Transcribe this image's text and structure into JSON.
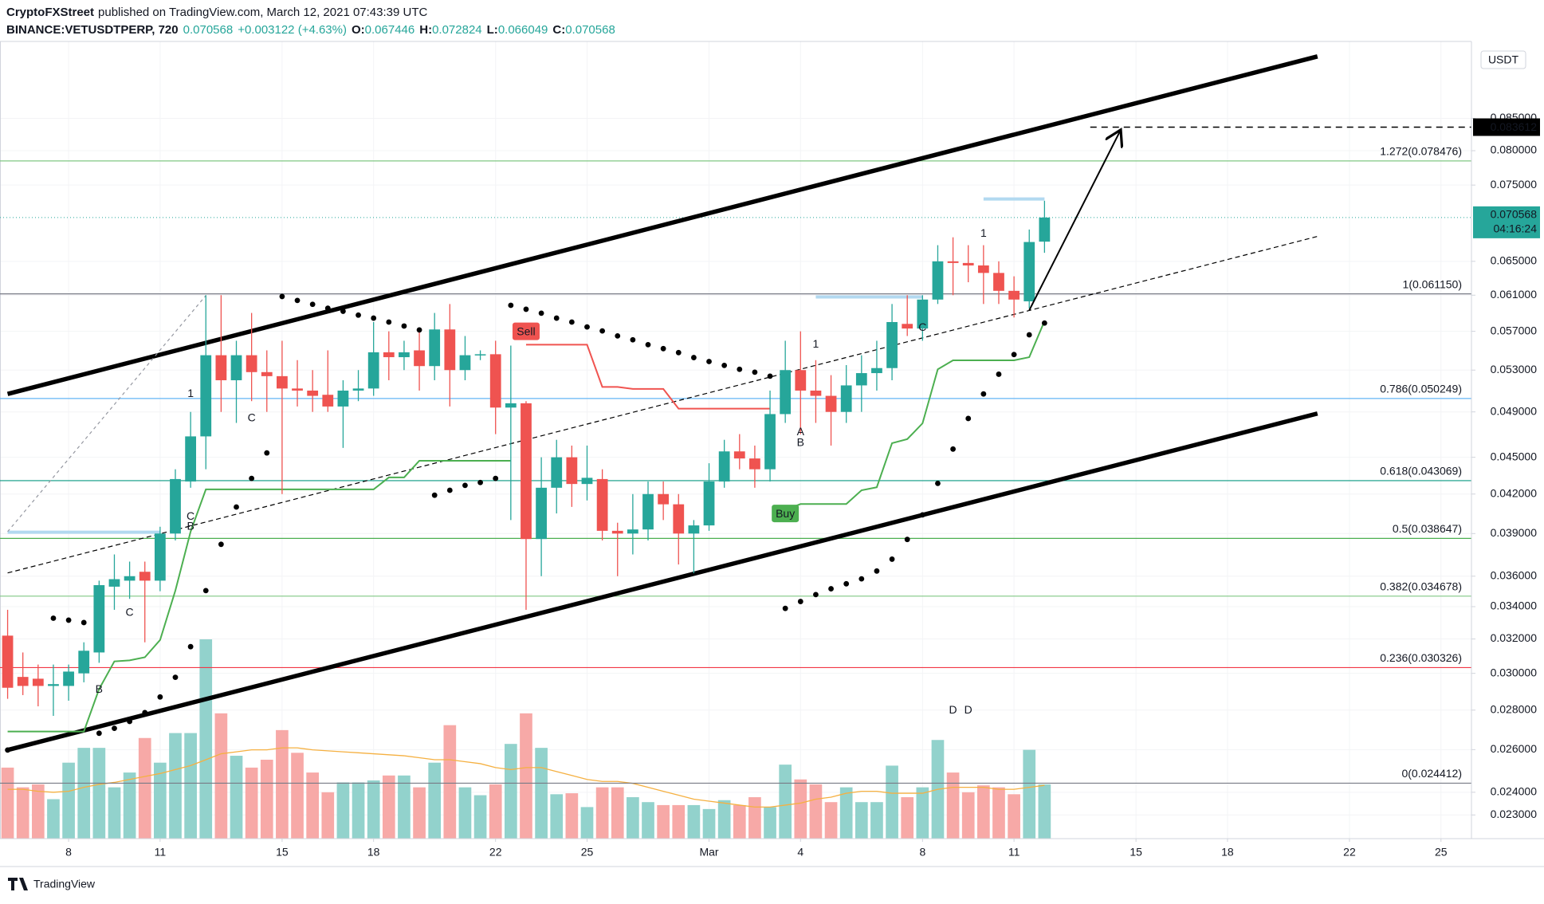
{
  "chart_data": {
    "type": "candlestick",
    "publisher": "CryptoFXStreet",
    "title": "published on TradingView.com, March 12, 2021 07:43:39 UTC",
    "symbol": "BINANCE:VETUSDTPERP, 720",
    "change": "+0.003122 (+4.63%)",
    "ohlc_labels": [
      "O:",
      "H:",
      "L:",
      "C:"
    ],
    "currency": "USDT",
    "countdown": "04:16:24",
    "brand": "TradingView",
    "log_scale": true,
    "grid": true,
    "up_color": "#26a69a",
    "down_color": "#ef5350",
    "volume_up_color": "#92d2cc",
    "volume_down_color": "#f7a9a7",
    "volume_ma_color": "#f5b041",
    "xlim": [
      -0.5,
      96
    ],
    "xticks": [
      {
        "value": 4,
        "label": "8"
      },
      {
        "value": 10,
        "label": "11"
      },
      {
        "value": 18,
        "label": "15"
      },
      {
        "value": 24,
        "label": "18"
      },
      {
        "value": 32,
        "label": "22"
      },
      {
        "value": 38,
        "label": "25"
      },
      {
        "value": 46,
        "label": "Mar"
      },
      {
        "value": 52,
        "label": "4"
      },
      {
        "value": 60,
        "label": "8"
      },
      {
        "value": 66,
        "label": "11"
      },
      {
        "value": 74,
        "label": "15"
      },
      {
        "value": 80,
        "label": "18"
      },
      {
        "value": 88,
        "label": "22"
      },
      {
        "value": 94,
        "label": "25"
      }
    ],
    "ylim": [
      0.022,
      0.0982
    ],
    "yticks": [
      {
        "value": 0.085,
        "label": "0.085000"
      },
      {
        "value": 0.08,
        "label": "0.080000"
      },
      {
        "value": 0.075,
        "label": "0.075000"
      },
      {
        "value": 0.065,
        "label": "0.065000"
      },
      {
        "value": 0.061,
        "label": "0.061000"
      },
      {
        "value": 0.057,
        "label": "0.057000"
      },
      {
        "value": 0.053,
        "label": "0.053000"
      },
      {
        "value": 0.049,
        "label": "0.049000"
      },
      {
        "value": 0.045,
        "label": "0.045000"
      },
      {
        "value": 0.042,
        "label": "0.042000"
      },
      {
        "value": 0.039,
        "label": "0.039000"
      },
      {
        "value": 0.036,
        "label": "0.036000"
      },
      {
        "value": 0.034,
        "label": "0.034000"
      },
      {
        "value": 0.032,
        "label": "0.032000"
      },
      {
        "value": 0.03,
        "label": "0.030000"
      },
      {
        "value": 0.028,
        "label": "0.028000"
      },
      {
        "value": 0.026,
        "label": "0.026000"
      },
      {
        "value": 0.024,
        "label": "0.024000"
      },
      {
        "value": 0.023,
        "label": "0.023000"
      }
    ],
    "open": [
      0.0322,
      0.0298,
      0.0297,
      0.0293,
      0.0293,
      0.03,
      0.0312,
      0.0353,
      0.0357,
      0.0363,
      0.0357,
      0.039,
      0.043,
      0.0468,
      0.0545,
      0.052,
      0.0545,
      0.0528,
      0.0524,
      0.0512,
      0.051,
      0.0506,
      0.0495,
      0.051,
      0.0512,
      0.0548,
      0.0543,
      0.055,
      0.0534,
      0.0572,
      0.053,
      0.0545,
      0.0546,
      0.0494,
      0.0498,
      0.0386,
      0.0425,
      0.045,
      0.0428,
      0.0432,
      0.0392,
      0.039,
      0.0393,
      0.042,
      0.0412,
      0.039,
      0.0396,
      0.043,
      0.0455,
      0.0449,
      0.044,
      0.0488,
      0.053,
      0.051,
      0.0505,
      0.049,
      0.0515,
      0.0527,
      0.0532,
      0.0578,
      0.0573,
      0.0605,
      0.065,
      0.0648,
      0.0645,
      0.0636,
      0.0615,
      0.0603,
      0.067446
    ],
    "high": [
      0.0338,
      0.0312,
      0.0305,
      0.0305,
      0.0305,
      0.0318,
      0.0357,
      0.0375,
      0.037,
      0.037,
      0.0395,
      0.044,
      0.049,
      0.061,
      0.061,
      0.056,
      0.059,
      0.055,
      0.056,
      0.054,
      0.053,
      0.055,
      0.052,
      0.053,
      0.058,
      0.057,
      0.056,
      0.057,
      0.059,
      0.06,
      0.0565,
      0.055,
      0.056,
      0.0555,
      0.05,
      0.045,
      0.0465,
      0.046,
      0.046,
      0.044,
      0.0398,
      0.042,
      0.043,
      0.043,
      0.042,
      0.04,
      0.0445,
      0.0465,
      0.047,
      0.046,
      0.051,
      0.056,
      0.057,
      0.054,
      0.0525,
      0.0535,
      0.0545,
      0.056,
      0.06,
      0.061,
      0.061,
      0.067,
      0.068,
      0.067,
      0.067,
      0.065,
      0.0632,
      0.069,
      0.072824
    ],
    "low": [
      0.0286,
      0.0288,
      0.0282,
      0.0277,
      0.0285,
      0.0295,
      0.0306,
      0.0338,
      0.0345,
      0.0318,
      0.035,
      0.0385,
      0.0425,
      0.044,
      0.049,
      0.048,
      0.05,
      0.049,
      0.042,
      0.0495,
      0.049,
      0.049,
      0.0458,
      0.05,
      0.0505,
      0.052,
      0.053,
      0.051,
      0.052,
      0.0495,
      0.052,
      0.054,
      0.047,
      0.04,
      0.0338,
      0.036,
      0.0405,
      0.041,
      0.0415,
      0.0385,
      0.036,
      0.0375,
      0.0385,
      0.04,
      0.0368,
      0.0362,
      0.0392,
      0.0425,
      0.044,
      0.0425,
      0.043,
      0.048,
      0.047,
      0.048,
      0.046,
      0.048,
      0.049,
      0.051,
      0.052,
      0.0565,
      0.056,
      0.06,
      0.061,
      0.0625,
      0.06,
      0.06,
      0.0585,
      0.0595,
      0.066049
    ],
    "close": [
      0.0292,
      0.0293,
      0.0293,
      0.0294,
      0.0301,
      0.0313,
      0.0354,
      0.0358,
      0.036,
      0.0357,
      0.039,
      0.0432,
      0.0468,
      0.0545,
      0.052,
      0.0545,
      0.0528,
      0.0524,
      0.0512,
      0.051,
      0.0505,
      0.0495,
      0.051,
      0.0512,
      0.0548,
      0.0543,
      0.0548,
      0.0534,
      0.0572,
      0.053,
      0.0545,
      0.0546,
      0.0494,
      0.0498,
      0.0386,
      0.0425,
      0.045,
      0.0428,
      0.0433,
      0.0392,
      0.039,
      0.0393,
      0.042,
      0.0412,
      0.039,
      0.0396,
      0.043,
      0.0455,
      0.0449,
      0.044,
      0.0488,
      0.053,
      0.051,
      0.0505,
      0.049,
      0.0515,
      0.0527,
      0.0532,
      0.058,
      0.0573,
      0.0605,
      0.065,
      0.0648,
      0.0645,
      0.0636,
      0.0615,
      0.0605,
      0.0674,
      0.070568
    ],
    "volume": [
      72,
      52,
      55,
      40,
      77,
      92,
      92,
      52,
      67,
      102,
      77,
      107,
      107,
      202,
      127,
      84,
      72,
      80,
      110,
      87,
      67,
      47,
      57,
      57,
      59,
      64,
      64,
      52,
      77,
      115,
      52,
      44,
      55,
      96,
      127,
      92,
      45,
      46,
      32,
      52,
      52,
      42,
      37,
      34,
      34,
      34,
      30,
      39,
      34,
      42,
      32,
      75,
      60,
      55,
      37,
      52,
      37,
      37,
      74,
      42,
      52,
      100,
      67,
      47,
      54,
      52,
      45,
      90,
      55
    ],
    "volume_ma": [
      50,
      50,
      48,
      47,
      48,
      52,
      55,
      57,
      60,
      63,
      66,
      70,
      74,
      80,
      86,
      88,
      90,
      90,
      92,
      92,
      90,
      89,
      88,
      87,
      86,
      85,
      84,
      82,
      80,
      80,
      78,
      76,
      72,
      70,
      72,
      72,
      68,
      64,
      60,
      58,
      58,
      56,
      52,
      48,
      44,
      40,
      38,
      36,
      34,
      32,
      32,
      34,
      36,
      40,
      42,
      46,
      48,
      48,
      46,
      46,
      46,
      50,
      52,
      52,
      52,
      50,
      50,
      52,
      54
    ],
    "sar": [
      0.02598,
      null,
      null,
      0.03327,
      0.03315,
      0.033,
      0.02681,
      0.02706,
      0.02741,
      0.02787,
      0.0287,
      0.02978,
      0.03154,
      0.03504,
      0.03822,
      0.04099,
      0.04325,
      0.04537,
      0.06085,
      0.0604,
      0.05996,
      0.05952,
      0.05919,
      0.05876,
      0.05843,
      0.058,
      0.05757,
      0.05715,
      0.04191,
      0.0423,
      0.04269,
      0.04292,
      0.04325,
      0.05985,
      0.05941,
      0.05897,
      0.05843,
      0.058,
      0.05747,
      0.05704,
      0.05651,
      0.0561,
      0.05559,
      0.05518,
      0.05477,
      0.05426,
      0.05386,
      0.05347,
      0.05308,
      0.05279,
      0.0524,
      0.03389,
      0.03433,
      0.03478,
      0.03516,
      0.03549,
      0.03582,
      0.03635,
      0.03717,
      0.03857,
      0.04039,
      0.04285,
      0.0457,
      0.0484,
      0.05068,
      0.05259,
      0.05457,
      0.05663,
      0.05789
    ],
    "supertrend_up": {
      "color": "#4caf50",
      "values": [
        0.0269,
        0.0269,
        0.0269,
        0.0269,
        0.0269,
        0.0269,
        0.02913,
        0.03068,
        0.03074,
        0.03092,
        0.03194,
        0.03504,
        0.03914,
        0.04237,
        0.04237,
        0.04237,
        0.04237,
        0.04237,
        0.04237,
        0.04237,
        0.04237,
        0.04237,
        0.04237,
        0.04237,
        0.04237,
        0.04333,
        0.04333,
        0.04471,
        0.04471,
        0.04471,
        0.04471,
        0.04471,
        0.04471,
        0.04471,
        null,
        null,
        null,
        null,
        null,
        null,
        null,
        null,
        null,
        null,
        null,
        null,
        null,
        null,
        null,
        null,
        null,
        0.04077,
        0.04122,
        0.04122,
        0.04122,
        0.04122,
        0.0423,
        0.04254,
        0.04621,
        0.04656,
        0.04796,
        0.05308,
        0.05398,
        0.05398,
        0.05398,
        0.05398,
        0.05398,
        0.0543,
        0.05811
      ]
    },
    "supertrend_down": {
      "color": "#f05450",
      "values": [
        null,
        null,
        null,
        null,
        null,
        null,
        null,
        null,
        null,
        null,
        null,
        null,
        null,
        null,
        null,
        null,
        null,
        null,
        null,
        null,
        null,
        null,
        null,
        null,
        null,
        null,
        null,
        null,
        null,
        null,
        null,
        null,
        null,
        null,
        0.05559,
        0.05559,
        0.05559,
        0.05559,
        0.05559,
        0.05135,
        0.05135,
        0.05116,
        0.05116,
        0.05116,
        0.0493,
        0.0493,
        0.0493,
        0.0493,
        0.0493,
        0.0493,
        0.0493,
        null,
        null,
        null,
        null,
        null,
        null,
        null,
        null,
        null,
        null,
        null,
        null,
        null,
        null,
        null,
        null,
        null,
        null
      ]
    },
    "fib_levels": [
      {
        "label": "1.272(0.078476)",
        "value": 0.078476,
        "color": "#81c784"
      },
      {
        "label": "1(0.061150)",
        "value": 0.06115,
        "color": "#787b86"
      },
      {
        "label": "0.786(0.050249)",
        "value": 0.050249,
        "color": "#64b5f6"
      },
      {
        "label": "0.618(0.043069)",
        "value": 0.043069,
        "color": "#089981"
      },
      {
        "label": "0.5(0.038647)",
        "value": 0.038647,
        "color": "#4caf50"
      },
      {
        "label": "0.382(0.034678)",
        "value": 0.034678,
        "color": "#81c784"
      },
      {
        "label": "0.236(0.030326)",
        "value": 0.030326,
        "color": "#f23645"
      },
      {
        "label": "0(0.024412)",
        "value": 0.024412,
        "color": "#787b86"
      }
    ],
    "channel": [
      {
        "x1": 0,
        "y1": 0.05068,
        "x2": 85.9,
        "y2": 0.09548
      },
      {
        "x1": 0,
        "y1": 0.02598,
        "x2": 85.9,
        "y2": 0.04885
      }
    ],
    "median_line": {
      "x1": 0,
      "y1": 0.03622,
      "x2": 85.9,
      "y2": 0.06811
    },
    "pitch_line": {
      "x1": 0,
      "y1": 0.03914,
      "x2": 13,
      "y2": 0.06096
    },
    "levels": {
      "color": "#b2d9f0",
      "segments": [
        {
          "x1": 0,
          "x2": 10,
          "value": 0.0391
        },
        {
          "x1": 53,
          "x2": 60,
          "value": 0.0608
        },
        {
          "x1": 64,
          "x2": 68,
          "value": 0.07306
        }
      ]
    },
    "arrow": {
      "x1": 67,
      "y1": 0.0593,
      "x2": 73,
      "y2": 0.0832
    },
    "target": {
      "value": 0.083612,
      "x1": 71
    },
    "annotations": [
      {
        "text": "1",
        "x": 12,
        "y": 0.05068,
        "color": "#c62828"
      },
      {
        "text": "C",
        "x": 12,
        "y": 0.04024,
        "color": "#b388ff"
      },
      {
        "text": "B",
        "x": 12,
        "y": 0.03951,
        "color": "#f5a623"
      },
      {
        "text": "C",
        "x": 16,
        "y": 0.0484,
        "color": "#b388ff"
      },
      {
        "text": "C",
        "x": 8,
        "y": 0.0336,
        "color": "#b388ff"
      },
      {
        "text": "B",
        "x": 6,
        "y": 0.02908,
        "color": "#f5a623"
      },
      {
        "text": "1",
        "x": 53,
        "y": 0.05559,
        "color": "#c62828"
      },
      {
        "text": "A",
        "x": 52,
        "y": 0.04715,
        "color": "#42a5f5"
      },
      {
        "text": "B",
        "x": 52,
        "y": 0.0462,
        "color": "#f5a623"
      },
      {
        "text": "1",
        "x": 64,
        "y": 0.06845,
        "color": "#c62828"
      },
      {
        "text": "C",
        "x": 60,
        "y": 0.05736,
        "color": "#b388ff"
      },
      {
        "text": "D",
        "x": 62,
        "y": 0.02798,
        "color": "#ef5350"
      },
      {
        "text": "D",
        "x": 63,
        "y": 0.02798,
        "color": "#ef5350"
      }
    ],
    "signals": [
      {
        "text": "Sell",
        "x": 34,
        "y": 0.057,
        "color": "#ef5350"
      },
      {
        "text": "Buy",
        "x": 51,
        "y": 0.0405,
        "color": "#4caf50"
      }
    ]
  }
}
